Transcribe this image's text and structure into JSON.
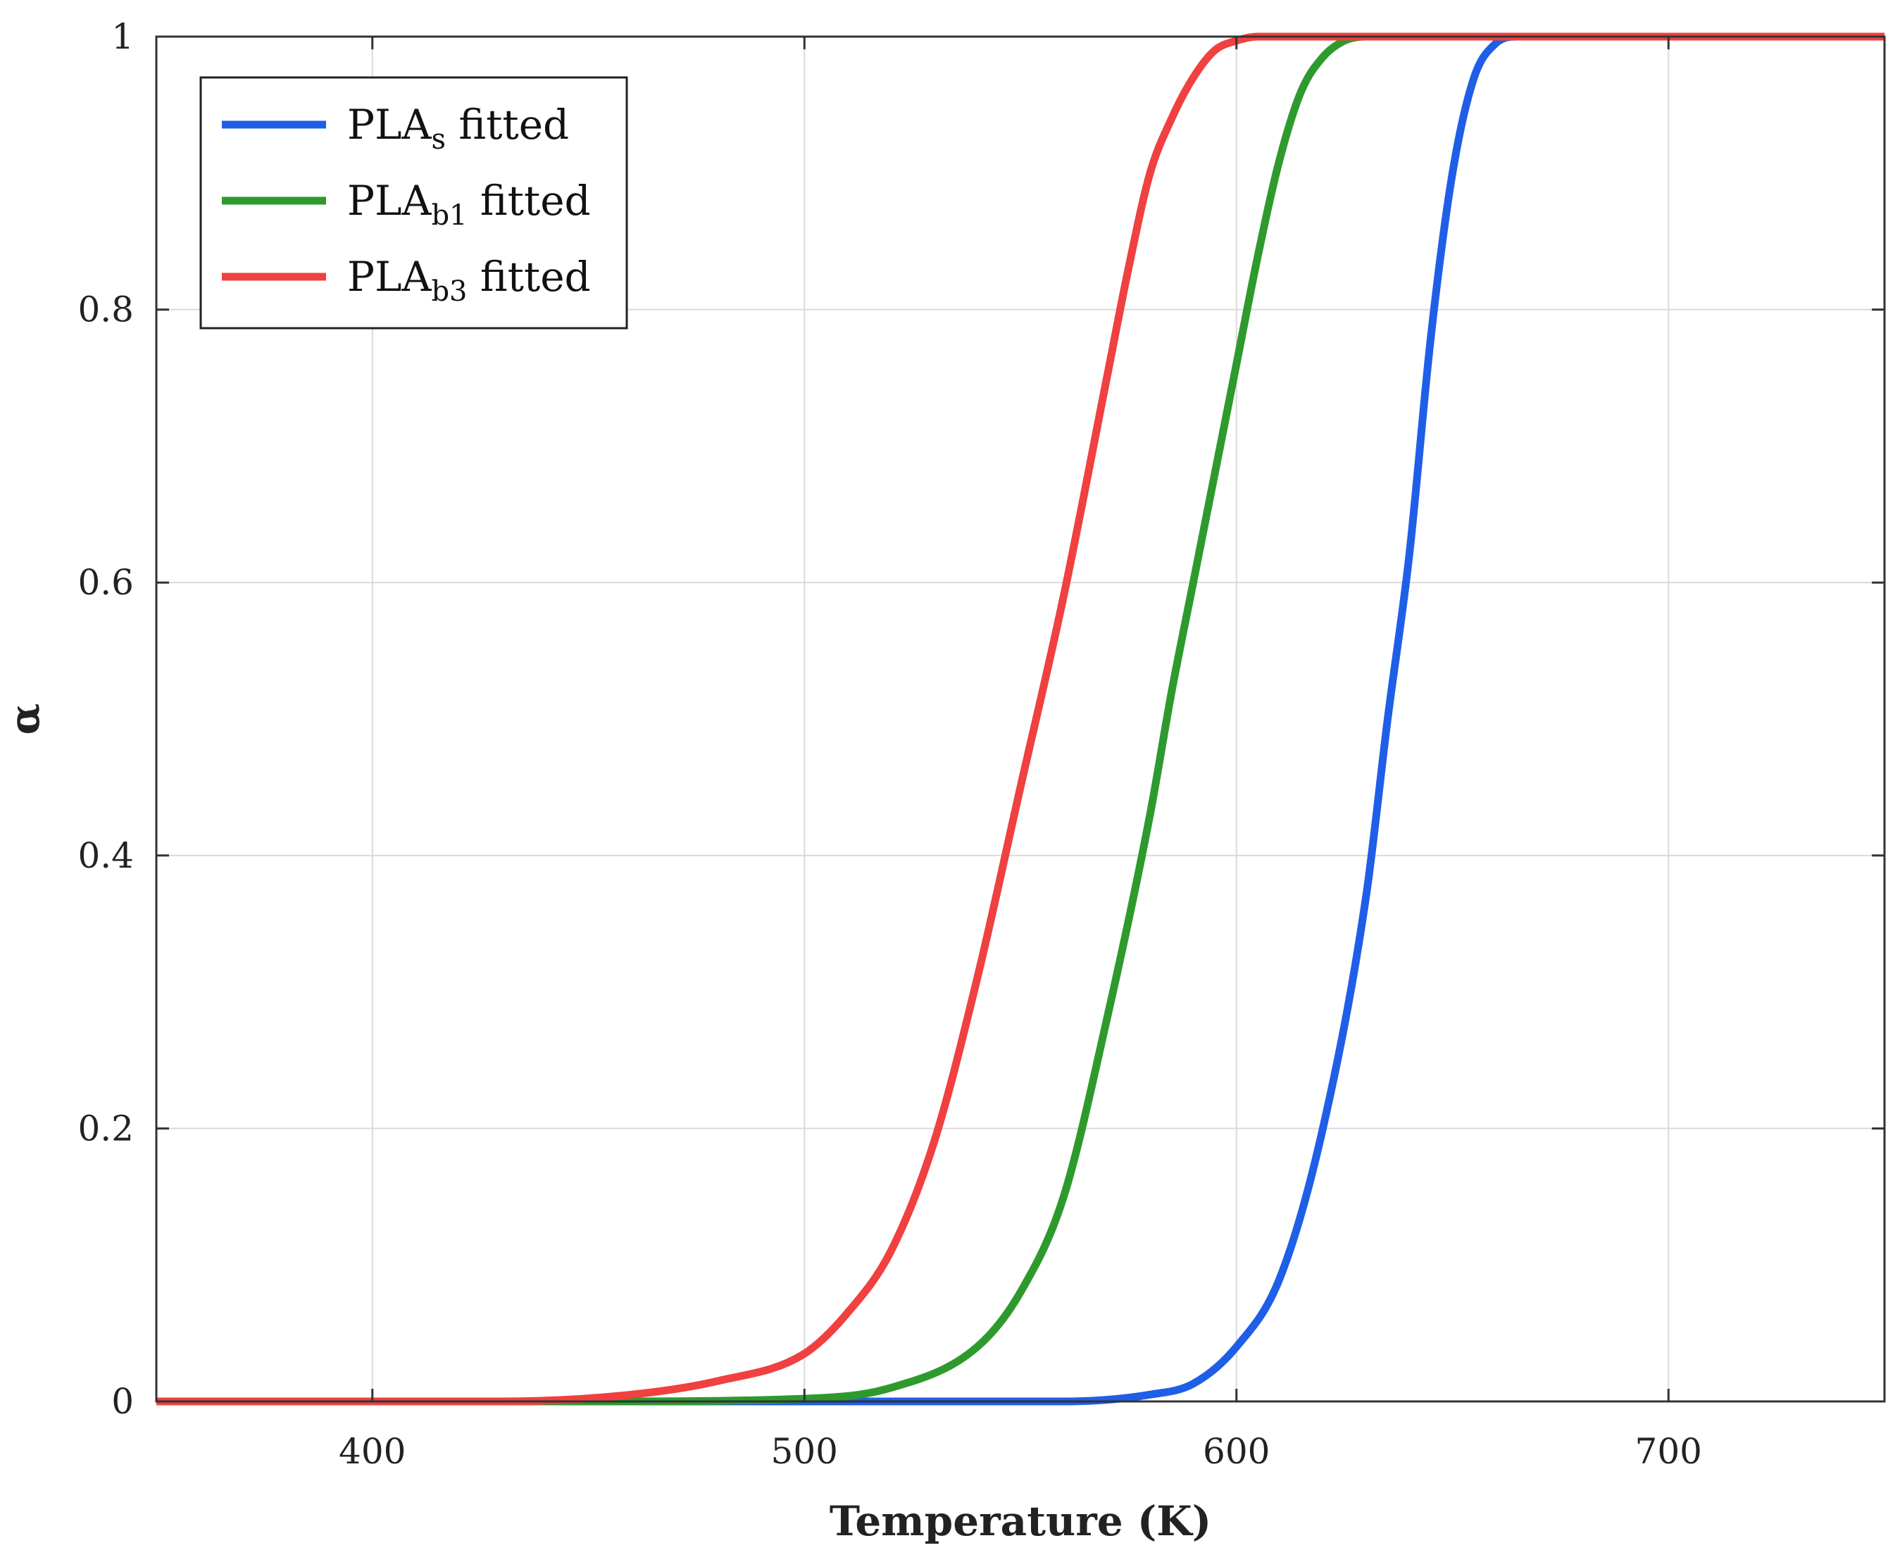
{
  "chart_data": {
    "type": "line",
    "title": "",
    "xlabel": "Temperature (K)",
    "ylabel": "α",
    "xlim": [
      350,
      750
    ],
    "ylim": [
      0,
      1
    ],
    "x_ticks": [
      400,
      500,
      600,
      700
    ],
    "x_tick_labels": [
      "400",
      "500",
      "600",
      "700"
    ],
    "y_ticks": [
      0,
      0.2,
      0.4,
      0.6,
      0.8,
      1
    ],
    "y_tick_labels": [
      "0",
      "0.2",
      "0.4",
      "0.6",
      "0.8",
      "1"
    ],
    "grid": true,
    "legend_position": "top-left",
    "series": [
      {
        "name": "PLAs fitted",
        "label_main": "PLA",
        "label_sub": "s",
        "label_suffix": " fitted",
        "color": "#1f5fe8",
        "x": [
          350,
          560,
          580,
          590,
          600,
          610,
          620,
          630,
          635,
          640,
          645,
          650,
          655,
          660,
          665,
          670,
          680,
          750
        ],
        "y": [
          0,
          0.0,
          0.005,
          0.013,
          0.04,
          0.09,
          0.2,
          0.37,
          0.5,
          0.62,
          0.78,
          0.9,
          0.97,
          0.995,
          1,
          1,
          1,
          1
        ]
      },
      {
        "name": "PLAb1 fitted",
        "label_main": "PLA",
        "label_sub": "b1",
        "label_suffix": " fitted",
        "color": "#2e9a2e",
        "x": [
          350,
          450,
          500,
          520,
          540,
          550,
          560,
          570,
          580,
          585,
          590,
          595,
          600,
          605,
          610,
          615,
          620,
          625,
          630,
          640,
          750
        ],
        "y": [
          0,
          0.0,
          0.002,
          0.01,
          0.04,
          0.08,
          0.15,
          0.28,
          0.43,
          0.52,
          0.6,
          0.68,
          0.76,
          0.84,
          0.91,
          0.96,
          0.985,
          0.997,
          1,
          1,
          1
        ]
      },
      {
        "name": "PLAb3 fitted",
        "label_main": "PLA",
        "label_sub": "b3",
        "label_suffix": " fitted",
        "color": "#f04040",
        "x": [
          350,
          430,
          460,
          480,
          500,
          510,
          520,
          530,
          540,
          550,
          560,
          570,
          575,
          580,
          585,
          590,
          595,
          600,
          605,
          610,
          620,
          750
        ],
        "y": [
          0,
          0.0,
          0.005,
          0.015,
          0.035,
          0.065,
          0.11,
          0.19,
          0.31,
          0.45,
          0.59,
          0.75,
          0.83,
          0.9,
          0.94,
          0.97,
          0.99,
          0.997,
          1,
          1,
          1,
          1
        ]
      }
    ]
  }
}
